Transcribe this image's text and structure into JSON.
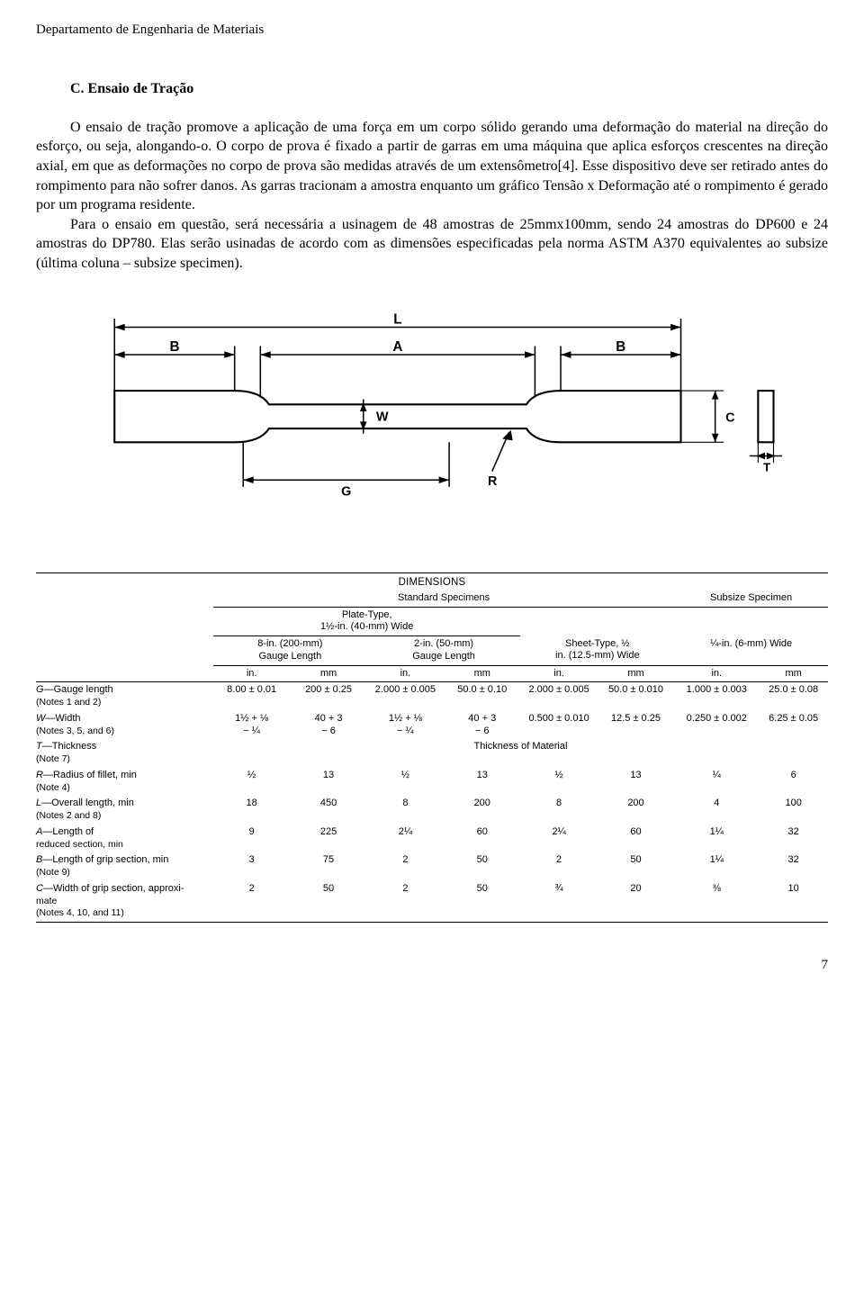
{
  "header": "Departamento de Engenharia de Materiais",
  "section_title": "C.  Ensaio de Tração",
  "paragraphs": {
    "p1": "O ensaio de tração promove a aplicação de uma força em um corpo sólido gerando uma deformação do material na direção do esforço, ou seja, alongando-o. O corpo de prova é fixado a partir de garras em uma máquina que aplica esforços crescentes na direção axial, em que as deformações no corpo de prova são medidas através de um extensômetro[4]. Esse dispositivo deve ser retirado antes do rompimento para não sofrer danos. As garras tracionam a amostra enquanto um gráfico Tensão x Deformação até o rompimento é gerado por um programa residente.",
    "p2": "Para o ensaio em questão, será necessária a usinagem de 48 amostras de 25mmx100mm, sendo 24 amostras do DP600 e 24 amostras do DP780. Elas serão usinadas de acordo com as dimensões especificadas pela norma ASTM A370 equivalentes ao subsize (última coluna – subsize specimen)."
  },
  "diagram": {
    "labels": {
      "L": "L",
      "B1": "B",
      "A": "A",
      "B2": "B",
      "W": "W",
      "C": "C",
      "T": "T",
      "G": "G",
      "R": "R"
    },
    "stroke": "#000000",
    "stroke_w_main": 2.2,
    "stroke_w_dim": 1.6
  },
  "dims_title": "DIMENSIONS",
  "group_headers": {
    "standard": "Standard Specimens",
    "subsize": "Subsize Specimen",
    "plate": "Plate-Type,\n1½-in. (40-mm) Wide",
    "gl8": "8-in. (200-mm)\nGauge Length",
    "gl2": "2-in. (50-mm)\nGauge Length",
    "sheet": "Sheet-Type, ½\nin. (12.5-mm) Wide",
    "quarter": "¼-in. (6-mm) Wide",
    "in": "in.",
    "mm": "mm"
  },
  "rows": [
    {
      "sym": "G",
      "desc": "—Gauge length",
      "note": "(Notes 1 and 2)",
      "c": [
        "8.00 ± 0.01",
        "200 ± 0.25",
        "2.000 ± 0.005",
        "50.0 ± 0.10",
        "2.000 ± 0.005",
        "50.0 ± 0.010",
        "1.000 ± 0.003",
        "25.0 ± 0.08"
      ]
    },
    {
      "sym": "W",
      "desc": "—Width",
      "note": "(Notes 3, 5, and 6)",
      "c": [
        "1½  +  ⅛\n−  ¼",
        "40 + 3\n− 6",
        "1½  +  ⅛\n−  ¼",
        "40 + 3\n− 6",
        "0.500 ± 0.010",
        "12.5 ± 0.25",
        "0.250 ± 0.002",
        "6.25 ± 0.05"
      ]
    },
    {
      "sym": "T",
      "desc": "—Thickness",
      "note": "(Note 7)",
      "thickness_of_material": "Thickness of Material",
      "c": [
        "",
        "",
        "",
        "",
        "",
        "",
        "",
        ""
      ]
    },
    {
      "sym": "R",
      "desc": "—Radius of fillet, min",
      "note": "(Note 4)",
      "c": [
        "½",
        "13",
        "½",
        "13",
        "½",
        "13",
        "¼",
        "6"
      ]
    },
    {
      "sym": "L",
      "desc": "—Overall length, min",
      "note": "(Notes 2 and 8)",
      "c": [
        "18",
        "450",
        "8",
        "200",
        "8",
        "200",
        "4",
        "100"
      ]
    },
    {
      "sym": "A",
      "desc": "—Length of",
      "note": "reduced section, min",
      "c": [
        "9",
        "225",
        "2¼",
        "60",
        "2¼",
        "60",
        "1¼",
        "32"
      ]
    },
    {
      "sym": "B",
      "desc": "—Length of grip section, min",
      "note": "(Note 9)",
      "c": [
        "3",
        "75",
        "2",
        "50",
        "2",
        "50",
        "1¼",
        "32"
      ]
    },
    {
      "sym": "C",
      "desc": "—Width of grip section, approxi-",
      "note": "mate\n(Notes 4, 10, and 11)",
      "c": [
        "2",
        "50",
        "2",
        "50",
        "¾",
        "20",
        "⅜",
        "10"
      ]
    }
  ],
  "page_number": "7"
}
